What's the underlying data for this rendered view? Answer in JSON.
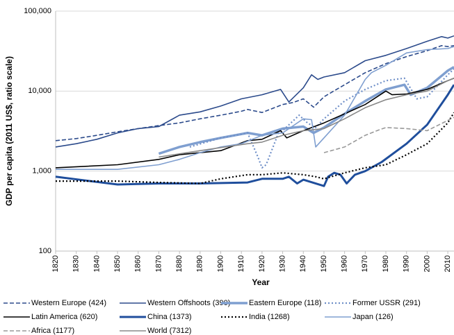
{
  "chart_data": {
    "type": "line",
    "xlabel": "Year",
    "ylabel": "GDP per capita (2011 US$, ratio scale)",
    "xlim": [
      1820,
      2013
    ],
    "xticks": [
      1820,
      1830,
      1840,
      1850,
      1860,
      1870,
      1880,
      1890,
      1900,
      1910,
      1920,
      1930,
      1940,
      1950,
      1960,
      1970,
      1980,
      1990,
      2000,
      2010
    ],
    "ylim": [
      100,
      100000
    ],
    "log_scale": true,
    "grid": true,
    "yticks": [
      100,
      {
        "value": 1000,
        "label": "1,000"
      },
      {
        "value": 10000,
        "label": "10,000"
      },
      {
        "value": 100000,
        "label": "100,000"
      }
    ],
    "legend": "bottom",
    "series": [
      {
        "name": "Western Europe (424)",
        "color": "#2b4a8b",
        "dash": "dashed",
        "width": 1.6,
        "x": [
          1820,
          1830,
          1840,
          1850,
          1860,
          1870,
          1880,
          1890,
          1900,
          1910,
          1913,
          1920,
          1930,
          1935,
          1940,
          1945,
          1950,
          1960,
          1970,
          1980,
          1990,
          2000,
          2007,
          2010,
          2013
        ],
        "values": [
          2400,
          2550,
          2800,
          3100,
          3400,
          3700,
          4000,
          4500,
          5000,
          5600,
          5900,
          5400,
          6800,
          7200,
          8000,
          6300,
          8500,
          12000,
          17000,
          22000,
          27000,
          32000,
          37000,
          36000,
          37000
        ]
      },
      {
        "name": "Western Offshoots (390)",
        "color": "#2b4a8b",
        "dash": "solid",
        "width": 1.6,
        "x": [
          1820,
          1830,
          1840,
          1850,
          1860,
          1870,
          1880,
          1890,
          1900,
          1910,
          1920,
          1929,
          1933,
          1940,
          1944,
          1947,
          1950,
          1960,
          1970,
          1980,
          1990,
          2000,
          2007,
          2010,
          2013
        ],
        "values": [
          2000,
          2200,
          2500,
          3000,
          3400,
          3600,
          5000,
          5500,
          6500,
          8000,
          9000,
          10500,
          7300,
          11000,
          16000,
          14000,
          15000,
          17000,
          24000,
          28000,
          34000,
          42000,
          48000,
          46000,
          49000
        ]
      },
      {
        "name": "Eastern Europe (118)",
        "color": "#7f9fd0",
        "dash": "solid",
        "width": 3.5,
        "x": [
          1870,
          1880,
          1890,
          1900,
          1910,
          1913,
          1920,
          1930,
          1940,
          1945,
          1950,
          1960,
          1970,
          1980,
          1989,
          1992,
          2000,
          2010,
          2013
        ],
        "values": [
          1650,
          2000,
          2300,
          2600,
          2900,
          3000,
          2800,
          3400,
          3600,
          3000,
          3500,
          5200,
          7500,
          10500,
          12000,
          9000,
          11000,
          18000,
          20000
        ]
      },
      {
        "name": "Former USSR (291)",
        "color": "#6f8fc8",
        "dash": "dotted",
        "width": 2.2,
        "x": [
          1885,
          1900,
          1913,
          1918,
          1920,
          1922,
          1928,
          1930,
          1938,
          1942,
          1946,
          1950,
          1960,
          1970,
          1980,
          1989,
          1995,
          2000,
          2010,
          2013
        ],
        "values": [
          2000,
          2600,
          3000,
          1500,
          1100,
          1200,
          3000,
          3200,
          5000,
          4000,
          3500,
          4500,
          7500,
          10500,
          13500,
          14500,
          8000,
          8500,
          16000,
          19000
        ]
      },
      {
        "name": "Latin America (620)",
        "color": "#000000",
        "dash": "solid",
        "width": 1.6,
        "x": [
          1820,
          1850,
          1870,
          1880,
          1900,
          1913,
          1920,
          1929,
          1932,
          1940,
          1950,
          1960,
          1970,
          1980,
          1983,
          1990,
          2000,
          2010,
          2013
        ],
        "values": [
          1100,
          1200,
          1400,
          1600,
          1800,
          2400,
          2500,
          3200,
          2600,
          3200,
          4000,
          5200,
          6800,
          10000,
          9000,
          9200,
          10500,
          13500,
          14500
        ]
      },
      {
        "name": "China (1373)",
        "color": "#1f4e9c",
        "dash": "solid",
        "width": 3,
        "x": [
          1820,
          1850,
          1870,
          1890,
          1913,
          1920,
          1930,
          1933,
          1937,
          1940,
          1950,
          1952,
          1955,
          1958,
          1961,
          1965,
          1970,
          1978,
          1990,
          2000,
          2010,
          2013
        ],
        "values": [
          850,
          680,
          700,
          700,
          720,
          800,
          800,
          850,
          700,
          780,
          650,
          850,
          950,
          900,
          700,
          900,
          1000,
          1300,
          2200,
          3800,
          9000,
          12000
        ]
      },
      {
        "name": "India (1268)",
        "color": "#000000",
        "dash": "dotted",
        "width": 2.2,
        "x": [
          1820,
          1850,
          1870,
          1890,
          1900,
          1913,
          1920,
          1930,
          1940,
          1946,
          1950,
          1960,
          1970,
          1980,
          1990,
          2000,
          2010,
          2013
        ],
        "values": [
          750,
          750,
          720,
          700,
          800,
          900,
          900,
          950,
          900,
          850,
          800,
          950,
          1100,
          1200,
          1600,
          2200,
          4000,
          5400
        ]
      },
      {
        "name": "Japan (126)",
        "color": "#7f9fd0",
        "dash": "solid",
        "width": 1.6,
        "x": [
          1820,
          1850,
          1870,
          1880,
          1890,
          1900,
          1910,
          1920,
          1930,
          1940,
          1944,
          1946,
          1950,
          1960,
          1970,
          1973,
          1980,
          1990,
          2000,
          2010,
          2013
        ],
        "values": [
          1050,
          1050,
          1200,
          1400,
          1700,
          2000,
          2200,
          2800,
          3000,
          4500,
          4400,
          2000,
          2600,
          5000,
          14000,
          17000,
          21000,
          30000,
          33000,
          34000,
          36000
        ]
      },
      {
        "name": "Africa (1177)",
        "color": "#999999",
        "dash": "dashed",
        "width": 1.6,
        "x": [
          1950,
          1960,
          1970,
          1977,
          1980,
          1990,
          2000,
          2010,
          2013
        ],
        "values": [
          1700,
          2000,
          2800,
          3300,
          3500,
          3400,
          3200,
          4300,
          4700
        ]
      },
      {
        "name": "World (7312)",
        "color": "#888888",
        "dash": "solid",
        "width": 1.6,
        "x": [
          1870,
          1890,
          1913,
          1920,
          1930,
          1940,
          1950,
          1960,
          1970,
          1980,
          1990,
          2000,
          2010,
          2013
        ],
        "values": [
          1500,
          1800,
          2200,
          2300,
          2800,
          3200,
          3400,
          4500,
          6200,
          7800,
          9000,
          10000,
          13500,
          14500
        ]
      }
    ]
  }
}
